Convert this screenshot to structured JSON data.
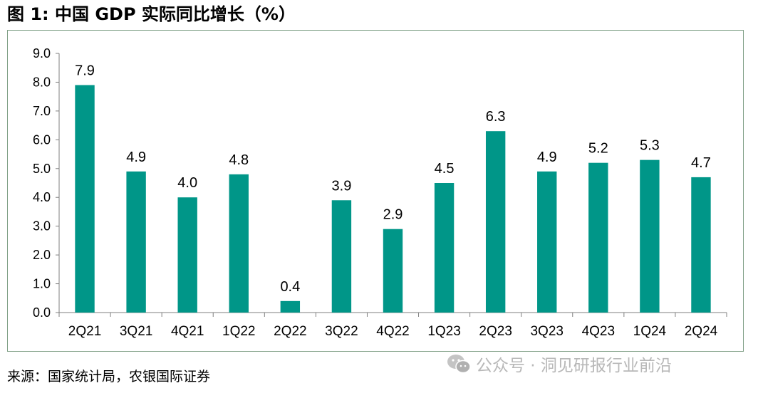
{
  "title": "图 1:  中国 GDP 实际同比增长（%）",
  "source": "来源：国家统计局，农银国际证券",
  "watermark": {
    "text": "公众号 · 洞见研报行业前沿",
    "icon": "wechat-icon"
  },
  "colors": {
    "bar": "#009688",
    "axis": "#7f7f7f",
    "frame": "#7f9f86"
  },
  "chart_data": {
    "type": "bar",
    "categories": [
      "2Q21",
      "3Q21",
      "4Q21",
      "1Q22",
      "2Q22",
      "3Q22",
      "4Q22",
      "1Q23",
      "2Q23",
      "3Q23",
      "4Q23",
      "1Q24",
      "2Q24"
    ],
    "values": [
      7.9,
      4.9,
      4.0,
      4.8,
      0.4,
      3.9,
      2.9,
      4.5,
      6.3,
      4.9,
      5.2,
      5.3,
      4.7
    ],
    "data_labels": [
      "7.9",
      "4.9",
      "4.0",
      "4.8",
      "0.4",
      "3.9",
      "2.9",
      "4.5",
      "6.3",
      "4.9",
      "5.2",
      "5.3",
      "4.7"
    ],
    "yticks": [
      "0.0",
      "1.0",
      "2.0",
      "3.0",
      "4.0",
      "5.0",
      "6.0",
      "7.0",
      "8.0",
      "9.0"
    ],
    "ylim": [
      0,
      9
    ],
    "grid": false,
    "legend": "none"
  }
}
